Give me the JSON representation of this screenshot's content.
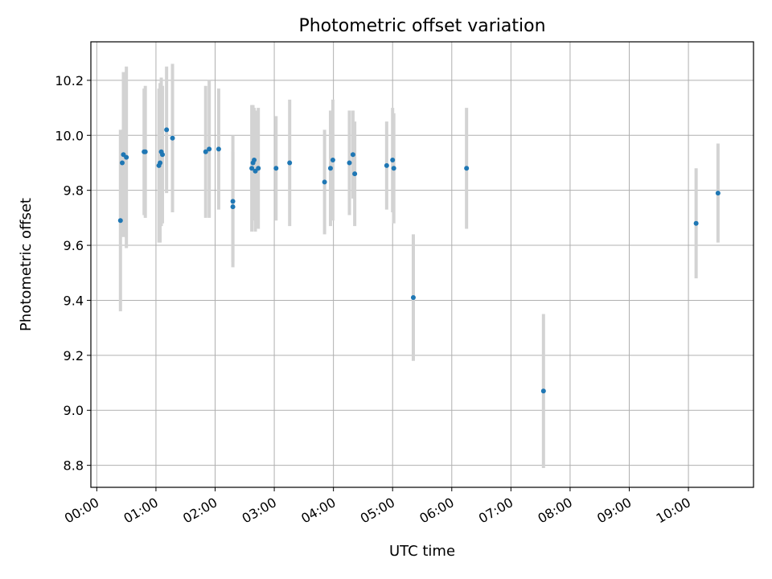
{
  "chart_data": {
    "type": "scatter",
    "title": "Photometric offset variation",
    "xlabel": "UTC time",
    "ylabel": "Photometric offset",
    "x_unit": "hours UTC",
    "xlim": [
      -0.1,
      11.1
    ],
    "ylim": [
      8.72,
      10.34
    ],
    "grid": true,
    "x_tick_values": [
      0,
      1,
      2,
      3,
      4,
      5,
      6,
      7,
      8,
      9,
      10
    ],
    "x_tick_labels": [
      "00:00",
      "01:00",
      "02:00",
      "03:00",
      "04:00",
      "05:00",
      "06:00",
      "07:00",
      "08:00",
      "09:00",
      "10:00"
    ],
    "y_tick_values": [
      8.8,
      9.0,
      9.2,
      9.4,
      9.6,
      9.8,
      10.0,
      10.2
    ],
    "y_tick_labels": [
      "8.8",
      "9.0",
      "9.2",
      "9.4",
      "9.6",
      "9.8",
      "10.0",
      "10.2"
    ],
    "colors": {
      "points": "#1f77b4",
      "errorbars": "#d3d3d3",
      "grid": "#b0b0b0",
      "axes": "#000000"
    },
    "series": [
      {
        "points": [
          {
            "x": 0.4,
            "y": 9.69,
            "err": 0.33
          },
          {
            "x": 0.43,
            "y": 9.9,
            "err": 0.12
          },
          {
            "x": 0.45,
            "y": 9.93,
            "err": 0.3
          },
          {
            "x": 0.5,
            "y": 9.92,
            "err": 0.33
          },
          {
            "x": 0.82,
            "y": 9.94,
            "err": 0.24
          },
          {
            "x": 0.8,
            "y": 9.94,
            "err": 0.23
          },
          {
            "x": 1.05,
            "y": 9.89,
            "err": 0.28
          },
          {
            "x": 1.07,
            "y": 9.9,
            "err": 0.29
          },
          {
            "x": 1.09,
            "y": 9.94,
            "err": 0.27
          },
          {
            "x": 1.11,
            "y": 9.93,
            "err": 0.25
          },
          {
            "x": 1.18,
            "y": 10.02,
            "err": 0.23
          },
          {
            "x": 1.28,
            "y": 9.99,
            "err": 0.27
          },
          {
            "x": 1.84,
            "y": 9.94,
            "err": 0.24
          },
          {
            "x": 1.9,
            "y": 9.95,
            "err": 0.25
          },
          {
            "x": 2.06,
            "y": 9.95,
            "err": 0.22
          },
          {
            "x": 2.3,
            "y": 9.76,
            "err": 0.24
          },
          {
            "x": 2.3,
            "y": 9.74,
            "err": 0.2
          },
          {
            "x": 2.62,
            "y": 9.88,
            "err": 0.23
          },
          {
            "x": 2.64,
            "y": 9.9,
            "err": 0.21
          },
          {
            "x": 2.66,
            "y": 9.91,
            "err": 0.19
          },
          {
            "x": 2.68,
            "y": 9.87,
            "err": 0.22
          },
          {
            "x": 2.73,
            "y": 9.88,
            "err": 0.22
          },
          {
            "x": 3.03,
            "y": 9.88,
            "err": 0.19
          },
          {
            "x": 3.26,
            "y": 9.9,
            "err": 0.23
          },
          {
            "x": 3.85,
            "y": 9.83,
            "err": 0.19
          },
          {
            "x": 3.95,
            "y": 9.88,
            "err": 0.21
          },
          {
            "x": 3.99,
            "y": 9.91,
            "err": 0.22
          },
          {
            "x": 4.27,
            "y": 9.9,
            "err": 0.19
          },
          {
            "x": 4.33,
            "y": 9.93,
            "err": 0.16
          },
          {
            "x": 4.36,
            "y": 9.86,
            "err": 0.19
          },
          {
            "x": 4.9,
            "y": 9.89,
            "err": 0.16
          },
          {
            "x": 5.0,
            "y": 9.91,
            "err": 0.19
          },
          {
            "x": 5.02,
            "y": 9.88,
            "err": 0.2
          },
          {
            "x": 5.35,
            "y": 9.41,
            "err": 0.23
          },
          {
            "x": 6.25,
            "y": 9.88,
            "err": 0.22
          },
          {
            "x": 7.55,
            "y": 9.07,
            "err": 0.28
          },
          {
            "x": 10.13,
            "y": 9.68,
            "err": 0.2
          },
          {
            "x": 10.5,
            "y": 9.79,
            "err": 0.18
          }
        ]
      }
    ]
  }
}
